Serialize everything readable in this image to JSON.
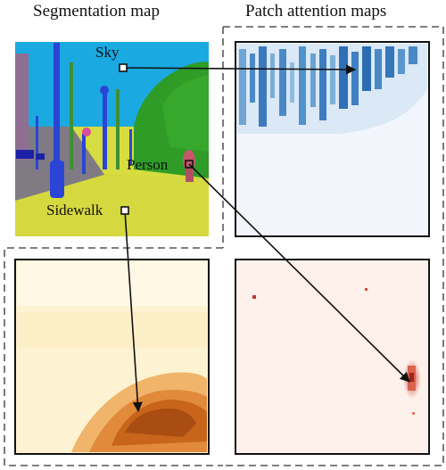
{
  "captions": {
    "left": "Segmentation map",
    "right": "Patch attention maps"
  },
  "points": {
    "sky": "Sky",
    "person": "Person",
    "sidewalk": "Sidewalk"
  },
  "colors": {
    "sky_attention": "#2b6cb0",
    "person_attention": "#c0392b",
    "sidewalk_attention": "#c8651b",
    "dashed_border": "#333333",
    "arrow": "#111111"
  },
  "icons": [
    "point-marker-square",
    "arrow"
  ]
}
